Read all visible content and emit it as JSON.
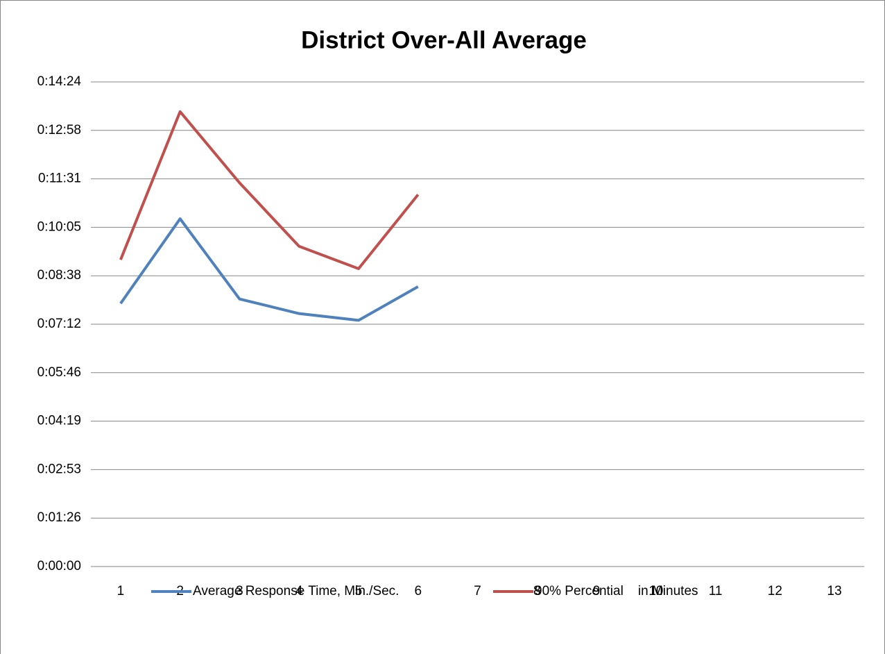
{
  "chart_data": {
    "type": "line",
    "title": "District Over-All Average",
    "categories": [
      "1",
      "2",
      "3",
      "4",
      "5",
      "6",
      "7",
      "8",
      "9",
      "10",
      "11",
      "12",
      "13"
    ],
    "series": [
      {
        "name": "Average Response Time, Min./Sec.",
        "color": "#4f81bd",
        "values": [
          469,
          620,
          477,
          451,
          439,
          499,
          null,
          null,
          null,
          null,
          null,
          null,
          null
        ]
      },
      {
        "name": "90% Percential    in Minutes",
        "color": "#c0504d",
        "values": [
          547,
          811,
          684,
          571,
          531,
          663,
          null,
          null,
          null,
          null,
          null,
          null,
          null
        ]
      }
    ],
    "ylim": [
      0,
      864
    ],
    "yticks": [
      {
        "value": 0,
        "label": "0:00:00"
      },
      {
        "value": 86.4,
        "label": "0:01:26"
      },
      {
        "value": 172.8,
        "label": "0:02:53"
      },
      {
        "value": 259.2,
        "label": "0:04:19"
      },
      {
        "value": 345.6,
        "label": "0:05:46"
      },
      {
        "value": 432,
        "label": "0:07:12"
      },
      {
        "value": 518.4,
        "label": "0:08:38"
      },
      {
        "value": 604.8,
        "label": "0:10:05"
      },
      {
        "value": 691.2,
        "label": "0:11:31"
      },
      {
        "value": 777.6,
        "label": "0:12:58"
      },
      {
        "value": 864,
        "label": "0:14:24"
      }
    ],
    "grid": true,
    "legend": "bottom"
  }
}
